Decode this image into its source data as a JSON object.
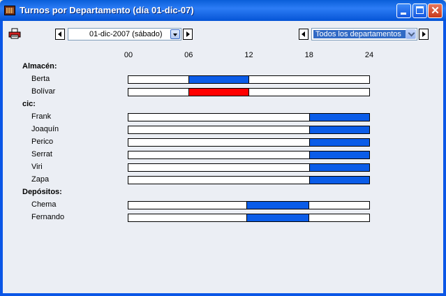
{
  "window": {
    "title": "Turnos por Departamento (día 01-dic-07)"
  },
  "toolbar": {
    "date_value": "01-dic-2007  (sábado)",
    "department_value": "Todos los departamentos"
  },
  "timeline": {
    "hours": [
      "00",
      "06",
      "12",
      "18",
      "24"
    ],
    "departments": [
      {
        "name": "Almacén:",
        "employees": [
          {
            "name": "Berta",
            "start": 6,
            "end": 12,
            "color": "#0a5ce8"
          },
          {
            "name": "Bolívar",
            "start": 6,
            "end": 12,
            "color": "#ff0000"
          }
        ]
      },
      {
        "name": "cic:",
        "employees": [
          {
            "name": "Frank",
            "start": 18,
            "end": 24,
            "color": "#0a5ce8"
          },
          {
            "name": "Joaquín",
            "start": 18,
            "end": 24,
            "color": "#0a5ce8"
          },
          {
            "name": "Perico",
            "start": 18,
            "end": 24,
            "color": "#0a5ce8"
          },
          {
            "name": "Serrat",
            "start": 18,
            "end": 24,
            "color": "#0a5ce8"
          },
          {
            "name": "Viri",
            "start": 18,
            "end": 24,
            "color": "#0a5ce8"
          },
          {
            "name": "Zapa",
            "start": 18,
            "end": 24,
            "color": "#0a5ce8"
          }
        ]
      },
      {
        "name": "Depósitos:",
        "employees": [
          {
            "name": "Chema",
            "start": 11.75,
            "end": 18,
            "color": "#0a5ce8"
          },
          {
            "name": "Fernando",
            "start": 11.75,
            "end": 18,
            "color": "#0a5ce8"
          }
        ]
      }
    ]
  }
}
